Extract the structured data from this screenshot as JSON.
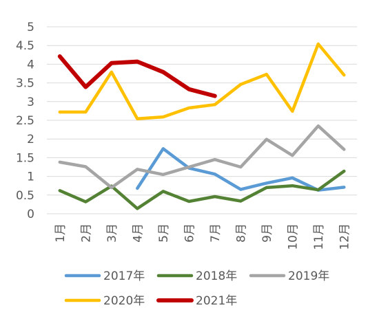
{
  "chart_data": {
    "type": "line",
    "title": "",
    "xlabel": "",
    "ylabel": "",
    "categories": [
      "1月",
      "2月",
      "3月",
      "4月",
      "5月",
      "6月",
      "7月",
      "8月",
      "9月",
      "10月",
      "11月",
      "12月"
    ],
    "ylim": [
      0,
      5
    ],
    "yticks": [
      "0",
      "0.5",
      "1",
      "1.5",
      "2",
      "2.5",
      "3",
      "3.5",
      "4",
      "4.5",
      "5"
    ],
    "grid": true,
    "legend_position": "bottom",
    "series": [
      {
        "name": "2017年",
        "color": "#5b9bd5",
        "values": [
          null,
          null,
          null,
          0.68,
          1.74,
          1.22,
          1.06,
          0.65,
          0.82,
          0.96,
          0.63,
          0.71
        ]
      },
      {
        "name": "2018年",
        "color": "#548235",
        "values": [
          0.62,
          0.32,
          0.74,
          0.14,
          0.6,
          0.33,
          0.46,
          0.34,
          0.7,
          0.75,
          0.64,
          1.14
        ]
      },
      {
        "name": "2019年",
        "color": "#a5a5a5",
        "values": [
          1.38,
          1.26,
          0.7,
          1.19,
          1.05,
          1.25,
          1.45,
          1.25,
          1.99,
          1.56,
          2.35,
          1.72
        ]
      },
      {
        "name": "2020年",
        "color": "#ffc000",
        "values": [
          2.72,
          2.72,
          3.79,
          2.54,
          2.59,
          2.83,
          2.92,
          3.46,
          3.73,
          2.74,
          4.54,
          3.71
        ]
      },
      {
        "name": "2021年",
        "color": "#c00000",
        "values": [
          4.21,
          3.39,
          4.03,
          4.07,
          3.79,
          3.33,
          3.15,
          null,
          null,
          null,
          null,
          null
        ]
      }
    ]
  }
}
